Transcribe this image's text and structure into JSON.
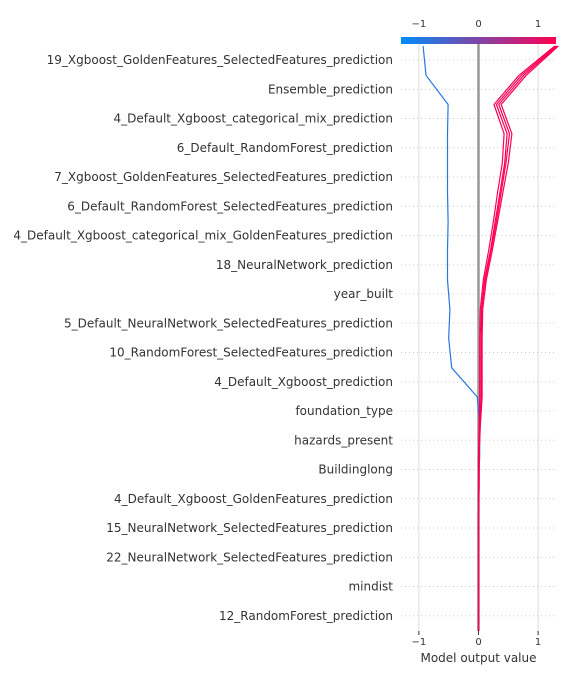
{
  "chart_data": {
    "type": "line",
    "subtype": "decision-plot",
    "title": "",
    "xlabel": "Model output value",
    "ylabel": "",
    "xlim": [
      -1.3,
      1.3
    ],
    "base_value": 0,
    "x_ticks": [
      -1,
      0,
      1
    ],
    "x_tick_labels": [
      "−1",
      "0",
      "1"
    ],
    "grid": true,
    "colormap": [
      "#008bfb",
      "#ff0052"
    ],
    "base_line_color": "#999999",
    "features": [
      "19_Xgboost_GoldenFeatures_SelectedFeatures_prediction",
      "Ensemble_prediction",
      "4_Default_Xgboost_categorical_mix_prediction",
      "6_Default_RandomForest_prediction",
      "7_Xgboost_GoldenFeatures_SelectedFeatures_prediction",
      "6_Default_RandomForest_SelectedFeatures_prediction",
      "4_Default_Xgboost_categorical_mix_GoldenFeatures_prediction",
      "18_NeuralNetwork_prediction",
      "year_built",
      "5_Default_NeuralNetwork_SelectedFeatures_prediction",
      "10_RandomForest_SelectedFeatures_prediction",
      "4_Default_Xgboost_prediction",
      "foundation_type",
      "hazards_present",
      "Buildinglong",
      "4_Default_Xgboost_GoldenFeatures_prediction",
      "15_NeuralNetwork_SelectedFeatures_prediction",
      "22_NeuralNetwork_SelectedFeatures_prediction",
      "mindist",
      "12_RandomForest_prediction"
    ],
    "series": [
      {
        "values": [
          0,
          0,
          0,
          0,
          0,
          0,
          0.02,
          0.02,
          -0.02,
          -0.45,
          -0.5,
          -0.48,
          -0.52,
          -0.52,
          -0.51,
          -0.52,
          -0.52,
          -0.52,
          -0.51,
          -0.88,
          -0.93
        ]
      },
      {
        "values": [
          0,
          0,
          0,
          0,
          0,
          0.01,
          0.01,
          0.01,
          0.05,
          0.05,
          0.05,
          0.05,
          0.1,
          0.2,
          0.28,
          0.36,
          0.44,
          0.48,
          0.3,
          0.72,
          1.3
        ]
      },
      {
        "values": [
          0,
          0,
          0,
          0,
          0,
          0.01,
          0.01,
          0.03,
          0.06,
          0.06,
          0.06,
          0.07,
          0.13,
          0.23,
          0.32,
          0.41,
          0.5,
          0.56,
          0.38,
          0.8,
          1.34
        ]
      },
      {
        "values": [
          0,
          0,
          0,
          0,
          0,
          0,
          0.01,
          0.02,
          0.04,
          0.04,
          0.04,
          0.05,
          0.11,
          0.21,
          0.3,
          0.38,
          0.46,
          0.52,
          0.34,
          0.76,
          1.32
        ]
      },
      {
        "values": [
          0,
          0,
          0,
          0,
          0,
          0,
          0,
          0.01,
          0.02,
          0.02,
          0.02,
          0.03,
          0.08,
          0.17,
          0.25,
          0.32,
          0.4,
          0.43,
          0.26,
          0.68,
          1.28
        ]
      }
    ]
  }
}
